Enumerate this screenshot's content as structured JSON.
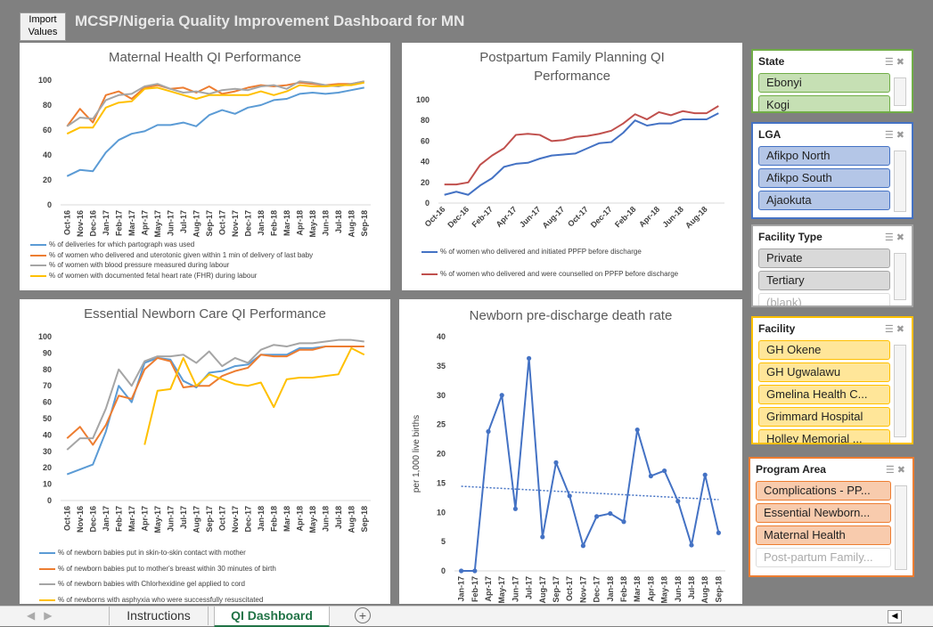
{
  "header": {
    "button": "Import Values",
    "title": "MCSP/Nigeria Quality Improvement Dashboard for MN"
  },
  "chart_data": [
    {
      "type": "line",
      "title": "Maternal Health QI Performance",
      "categories": [
        "Oct-16",
        "Nov-16",
        "Dec-16",
        "Jan-17",
        "Feb-17",
        "Mar-17",
        "Apr-17",
        "May-17",
        "Jun-17",
        "Jul-17",
        "Aug-17",
        "Sep-17",
        "Oct-17",
        "Nov-17",
        "Dec-17",
        "Jan-18",
        "Feb-18",
        "Mar-18",
        "Apr-18",
        "May-18",
        "Jun-18",
        "Jul-18",
        "Aug-18",
        "Sep-18"
      ],
      "ylim": [
        0,
        100
      ],
      "yticks": [
        0,
        20,
        40,
        60,
        80,
        100
      ],
      "grid": false,
      "legend": "bottom",
      "series": [
        {
          "name": "% of deliveries for which partograph was used",
          "color": "#5b9bd5",
          "values": [
            23,
            28,
            27,
            42,
            52,
            57,
            59,
            64,
            64,
            66,
            63,
            72,
            76,
            73,
            78,
            80,
            84,
            85,
            89,
            90,
            89,
            90,
            92,
            94
          ]
        },
        {
          "name": "% of women who delivered and uterotonic given within 1 min of delivery of last baby",
          "color": "#ed7d31",
          "values": [
            63,
            77,
            66,
            88,
            91,
            85,
            94,
            96,
            93,
            94,
            90,
            95,
            89,
            91,
            94,
            96,
            95,
            96,
            98,
            97,
            96,
            97,
            97,
            99
          ]
        },
        {
          "name": "% of women with blood pressure measured during labour",
          "color": "#a5a5a5",
          "values": [
            63,
            70,
            69,
            84,
            88,
            89,
            95,
            97,
            93,
            90,
            91,
            89,
            92,
            93,
            92,
            95,
            96,
            93,
            99,
            98,
            96,
            95,
            97,
            99
          ]
        },
        {
          "name": "% of women with documented fetal heart rate (FHR) during labour",
          "color": "#ffc000",
          "values": [
            57,
            62,
            62,
            78,
            82,
            83,
            93,
            94,
            91,
            88,
            85,
            88,
            88,
            88,
            88,
            91,
            88,
            91,
            96,
            95,
            95,
            96,
            96,
            98
          ]
        }
      ]
    },
    {
      "type": "line",
      "title": "Postpartum Family Planning QI Performance",
      "categories": [
        "Oct-16",
        null,
        "Dec-16",
        null,
        "Feb-17",
        null,
        "Apr-17",
        null,
        "Jun-17",
        null,
        "Aug-17",
        null,
        "Oct-17",
        null,
        "Dec-17",
        null,
        "Feb-18",
        null,
        "Apr-18",
        null,
        "Jun-18",
        null,
        "Aug-18",
        null
      ],
      "ylim": [
        0,
        100
      ],
      "yticks": [
        0,
        20,
        40,
        60,
        80,
        100
      ],
      "grid": false,
      "legend": "bottom",
      "series": [
        {
          "name": "% of women who delivered and initiated PPFP before discharge",
          "color": "#4472c4",
          "values": [
            8,
            11,
            8,
            17,
            24,
            35,
            38,
            39,
            43,
            46,
            47,
            48,
            53,
            58,
            59,
            68,
            80,
            75,
            77,
            77,
            81,
            81,
            81,
            87
          ]
        },
        {
          "name": "% of women who delivered and were counselled on PPFP before discharge",
          "color": "#c0504d",
          "values": [
            18,
            18,
            20,
            37,
            46,
            53,
            66,
            67,
            66,
            60,
            61,
            64,
            65,
            67,
            70,
            77,
            86,
            81,
            88,
            85,
            89,
            87,
            87,
            94
          ]
        }
      ]
    },
    {
      "type": "line",
      "title": "Essential Newborn Care QI Performance",
      "categories": [
        "Oct-16",
        "Nov-16",
        "Dec-16",
        "Jan-17",
        "Feb-17",
        "Mar-17",
        "Apr-17",
        "May-17",
        "Jun-17",
        "Jul-17",
        "Aug-17",
        "Sep-17",
        "Oct-17",
        "Nov-17",
        "Dec-17",
        "Jan-18",
        "Feb-18",
        "Mar-18",
        "Apr-18",
        "May-18",
        "Jun-18",
        "Jul-18",
        "Aug-18",
        "Sep-18"
      ],
      "ylim": [
        0,
        100
      ],
      "yticks": [
        0,
        10,
        20,
        30,
        40,
        50,
        60,
        70,
        80,
        90,
        100
      ],
      "grid": false,
      "legend": "bottom",
      "series": [
        {
          "name": "% of newborn babies put in skin-to-skin contact with mother",
          "color": "#5b9bd5",
          "values": [
            16,
            19,
            22,
            42,
            70,
            60,
            84,
            87,
            86,
            73,
            69,
            78,
            79,
            82,
            83,
            89,
            89,
            89,
            93,
            93,
            94,
            94,
            94,
            94
          ]
        },
        {
          "name": "% of newborn babies put to mother's breast within 30 minutes of birth",
          "color": "#ed7d31",
          "values": [
            38,
            45,
            34,
            46,
            64,
            62,
            80,
            87,
            85,
            69,
            70,
            70,
            76,
            79,
            81,
            89,
            88,
            88,
            92,
            92,
            94,
            94,
            94,
            94
          ]
        },
        {
          "name": "% of newborn babies with Chlorhexidine gel applied to cord",
          "color": "#a5a5a5",
          "values": [
            31,
            38,
            38,
            56,
            80,
            70,
            85,
            88,
            88,
            89,
            84,
            91,
            82,
            87,
            84,
            92,
            95,
            94,
            96,
            96,
            97,
            98,
            98,
            97
          ]
        },
        {
          "name": "% of newborns with asphyxia who were successfully resuscitated",
          "color": "#ffc000",
          "values": [
            null,
            null,
            null,
            null,
            null,
            null,
            34,
            67,
            68,
            87,
            70,
            77,
            74,
            71,
            70,
            72,
            57,
            74,
            75,
            75,
            76,
            77,
            93,
            89
          ]
        }
      ]
    },
    {
      "type": "line",
      "title": "Newborn pre-discharge death rate",
      "y_label": "per 1,000 live births",
      "categories": [
        "Jan-17",
        "Feb-17",
        "Apr-17",
        "May-17",
        "Jun-17",
        "Jul-17",
        "Aug-17",
        "Sep-17",
        "Oct-17",
        "Nov-17",
        "Dec-17",
        "Jan-18",
        "Feb-18",
        "Mar-18",
        "Apr-18",
        "May-18",
        "Jun-18",
        "Jul-18",
        "Aug-18",
        "Sep-18"
      ],
      "ylim": [
        0,
        40
      ],
      "yticks": [
        0,
        5,
        10,
        15,
        20,
        25,
        30,
        35,
        40
      ],
      "grid": false,
      "markers": true,
      "trendline": "linear",
      "series": [
        {
          "name": "Newborn pre-discharge death rate",
          "color": "#4472c4",
          "values": [
            0,
            0,
            23.8,
            30,
            10.6,
            36.3,
            5.8,
            18.5,
            12.8,
            4.3,
            9.3,
            9.8,
            8.4,
            24.1,
            16.2,
            17.1,
            11.9,
            4.4,
            16.4,
            6.5
          ]
        }
      ]
    }
  ],
  "slicers": [
    {
      "title": "State",
      "items": [
        "Ebonyi",
        "Kogi"
      ]
    },
    {
      "title": "LGA",
      "items": [
        "Afikpo North",
        "Afikpo South",
        "Ajaokuta"
      ]
    },
    {
      "title": "Facility Type",
      "items": [
        "Private",
        "Tertiary",
        "(blank)"
      ]
    },
    {
      "title": "Facility",
      "items": [
        "GH Okene",
        "GH Ugwalawu",
        "Gmelina Health C...",
        "Grimmard Hospital",
        "Holley Memorial ..."
      ]
    },
    {
      "title": "Program Area",
      "items": [
        "Complications - PP...",
        "Essential Newborn...",
        "Maternal Health",
        "Post-partum Family..."
      ]
    }
  ],
  "tabs": [
    "Instructions",
    "QI Dashboard"
  ]
}
